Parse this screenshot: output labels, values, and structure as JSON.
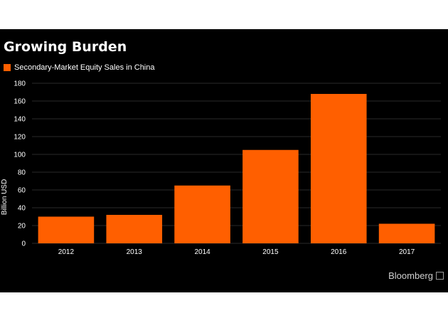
{
  "chart_data": {
    "type": "bar",
    "title": "Growing Burden",
    "legend_label": "Secondary-Market Equity Sales in China",
    "ylabel": "Billion USD",
    "categories": [
      "2012",
      "2013",
      "2014",
      "2015",
      "2016",
      "2017"
    ],
    "values": [
      30,
      32,
      65,
      105,
      168,
      22
    ],
    "ylim": [
      0,
      180
    ],
    "yticks": [
      "0",
      "20",
      "40",
      "60",
      "80",
      "100",
      "120",
      "140",
      "160",
      "180"
    ],
    "bar_color": "#ff5f00",
    "grid": true,
    "legend_position": "top-left"
  },
  "footer": {
    "source": "Bloomberg"
  }
}
